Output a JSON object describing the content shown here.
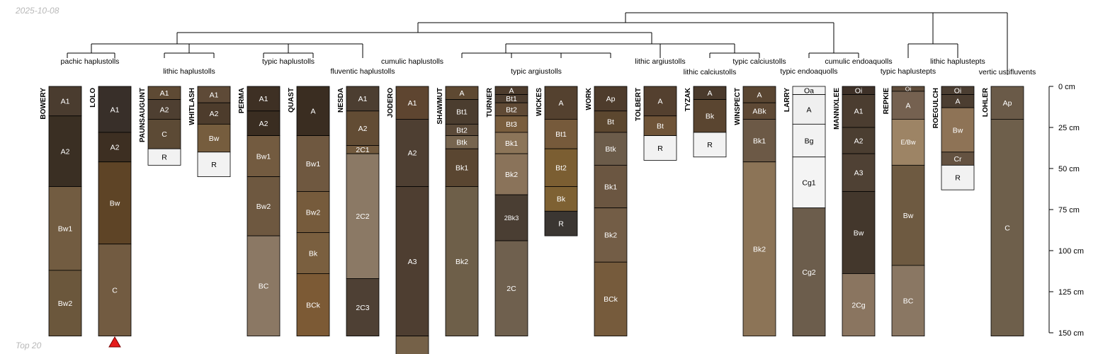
{
  "date_label": "2025-10-08",
  "footer_label": "Top 20",
  "depth_axis": {
    "max_cm": 150,
    "ticks": [
      0,
      25,
      50,
      75,
      100,
      125,
      150
    ],
    "tick_labels": [
      "0 cm",
      "25 cm",
      "50 cm",
      "75 cm",
      "100 cm",
      "125 cm",
      "150 cm"
    ]
  },
  "taxa_labels": [
    "pachic haplustolls",
    "lithic haplustolls",
    "typic haplustolls",
    "fluventic haplustolls",
    "cumulic haplustolls",
    "typic argiustolls",
    "lithic argiustolls",
    "lithic calciustolls",
    "typic calciustolls",
    "typic endoaquolls",
    "cumulic endoaquolls",
    "typic haplustepts",
    "lithic haplustepts",
    "vertic ustifluvents"
  ],
  "profiles": [
    {
      "name": "BOWERY",
      "horizons": [
        {
          "name": "A1",
          "top": 0,
          "bottom": 18,
          "color": "#4a3c2f"
        },
        {
          "name": "A2",
          "top": 18,
          "bottom": 61,
          "color": "#3a2f23"
        },
        {
          "name": "Bw1",
          "top": 61,
          "bottom": 112,
          "color": "#725c41"
        },
        {
          "name": "Bw2",
          "top": 112,
          "bottom": 152,
          "color": "#6b573c"
        }
      ]
    },
    {
      "name": "LOLO",
      "marker": "triangle",
      "horizons": [
        {
          "name": "A1",
          "top": 0,
          "bottom": 28,
          "color": "#382f29"
        },
        {
          "name": "A2",
          "top": 28,
          "bottom": 46,
          "color": "#3d2f22"
        },
        {
          "name": "Bw",
          "top": 46,
          "bottom": 96,
          "color": "#5e4426"
        },
        {
          "name": "C",
          "top": 96,
          "bottom": 152,
          "color": "#725b41"
        }
      ]
    },
    {
      "name": "PAUNSAUGUNT",
      "horizons": [
        {
          "name": "A1",
          "top": 0,
          "bottom": 8,
          "color": "#5e4a34"
        },
        {
          "name": "A2",
          "top": 8,
          "bottom": 20,
          "color": "#4e3f31"
        },
        {
          "name": "C",
          "top": 20,
          "bottom": 38,
          "color": "#5c4a35"
        },
        {
          "name": "R",
          "top": 38,
          "bottom": 48,
          "color": "#f2f2f2"
        }
      ]
    },
    {
      "name": "WHITLASH",
      "horizons": [
        {
          "name": "A1",
          "top": 0,
          "bottom": 10,
          "color": "#5e4a37"
        },
        {
          "name": "A2",
          "top": 10,
          "bottom": 23,
          "color": "#4d3c2c"
        },
        {
          "name": "Bw",
          "top": 23,
          "bottom": 40,
          "color": "#765d3e"
        },
        {
          "name": "R",
          "top": 40,
          "bottom": 55,
          "color": "#f2f2f2"
        }
      ]
    },
    {
      "name": "PERMA",
      "horizons": [
        {
          "name": "A1",
          "top": 0,
          "bottom": 15,
          "color": "#3e3024"
        },
        {
          "name": "A2",
          "top": 15,
          "bottom": 30,
          "color": "#3a2d21"
        },
        {
          "name": "Bw1",
          "top": 30,
          "bottom": 55,
          "color": "#735b40"
        },
        {
          "name": "Bw2",
          "top": 55,
          "bottom": 91,
          "color": "#6e5840"
        },
        {
          "name": "BC",
          "top": 91,
          "bottom": 152,
          "color": "#8b7864"
        }
      ]
    },
    {
      "name": "QUAST",
      "horizons": [
        {
          "name": "A",
          "top": 0,
          "bottom": 30,
          "color": "#3a2d21"
        },
        {
          "name": "Bw1",
          "top": 30,
          "bottom": 64,
          "color": "#6f5840"
        },
        {
          "name": "Bw2",
          "top": 64,
          "bottom": 89,
          "color": "#765b3c"
        },
        {
          "name": "Bk",
          "top": 89,
          "bottom": 114,
          "color": "#7a5f3f"
        },
        {
          "name": "BCk",
          "top": 114,
          "bottom": 152,
          "color": "#7c5a35"
        }
      ]
    },
    {
      "name": "NESDA",
      "horizons": [
        {
          "name": "A1",
          "top": 0,
          "bottom": 15,
          "color": "#4c3e31"
        },
        {
          "name": "A2",
          "top": 15,
          "bottom": 36,
          "color": "#624c34"
        },
        {
          "name": "2C1",
          "top": 36,
          "bottom": 41,
          "color": "#725a3e"
        },
        {
          "name": "2C2",
          "top": 41,
          "bottom": 117,
          "color": "#8b7965"
        },
        {
          "name": "2C3",
          "top": 117,
          "bottom": 152,
          "color": "#4e4034"
        }
      ]
    },
    {
      "name": "JODERO",
      "horizons": [
        {
          "name": "A1",
          "top": 0,
          "bottom": 20,
          "color": "#5e4530"
        },
        {
          "name": "A2",
          "top": 20,
          "bottom": 61,
          "color": "#4e3f32"
        },
        {
          "name": "A3",
          "top": 61,
          "bottom": 152,
          "color": "#4e3e31"
        },
        {
          "name": "",
          "top": 152,
          "bottom": 165,
          "color": "#756148"
        }
      ]
    },
    {
      "name": "SHAWMUT",
      "horizons": [
        {
          "name": "A",
          "top": 0,
          "bottom": 8,
          "color": "#5e4932"
        },
        {
          "name": "Bt1",
          "top": 8,
          "bottom": 23,
          "color": "#4b3d2f"
        },
        {
          "name": "Bt2",
          "top": 23,
          "bottom": 30,
          "color": "#5b4a39"
        },
        {
          "name": "Btk",
          "top": 30,
          "bottom": 38,
          "color": "#77654f"
        },
        {
          "name": "Bk1",
          "top": 38,
          "bottom": 61,
          "color": "#5a4631"
        },
        {
          "name": "Bk2",
          "top": 61,
          "bottom": 152,
          "color": "#6e5f49"
        }
      ]
    },
    {
      "name": "TURNER",
      "horizons": [
        {
          "name": "A",
          "top": 0,
          "bottom": 5,
          "color": "#4d3c2d"
        },
        {
          "name": "Bt1",
          "top": 5,
          "bottom": 10,
          "color": "#4e3e30"
        },
        {
          "name": "Bt2",
          "top": 10,
          "bottom": 18,
          "color": "#604a35"
        },
        {
          "name": "Bt3",
          "top": 18,
          "bottom": 28,
          "color": "#7a5e3e"
        },
        {
          "name": "Bk1",
          "top": 28,
          "bottom": 41,
          "color": "#8c7559"
        },
        {
          "name": "Bk2",
          "top": 41,
          "bottom": 66,
          "color": "#8a735a"
        },
        {
          "name": "2Bk3",
          "top": 66,
          "bottom": 94,
          "color": "#4a3e33"
        },
        {
          "name": "2C",
          "top": 94,
          "bottom": 152,
          "color": "#6f604e"
        }
      ]
    },
    {
      "name": "WICKES",
      "horizons": [
        {
          "name": "A",
          "top": 0,
          "bottom": 20,
          "color": "#54412f"
        },
        {
          "name": "Bt1",
          "top": 20,
          "bottom": 38,
          "color": "#765a3b"
        },
        {
          "name": "Bt2",
          "top": 38,
          "bottom": 61,
          "color": "#7b5e32"
        },
        {
          "name": "Bk",
          "top": 61,
          "bottom": 76,
          "color": "#7e6133"
        },
        {
          "name": "R",
          "top": 76,
          "bottom": 91,
          "color": "#3b3632"
        }
      ]
    },
    {
      "name": "WORK",
      "horizons": [
        {
          "name": "Ap",
          "top": 0,
          "bottom": 15,
          "color": "#4e3c2c"
        },
        {
          "name": "Bt",
          "top": 15,
          "bottom": 28,
          "color": "#5c472f"
        },
        {
          "name": "Btk",
          "top": 28,
          "bottom": 48,
          "color": "#6c5c4a"
        },
        {
          "name": "Bk1",
          "top": 48,
          "bottom": 74,
          "color": "#6b5641"
        },
        {
          "name": "Bk2",
          "top": 74,
          "bottom": 107,
          "color": "#735d46"
        },
        {
          "name": "BCk",
          "top": 107,
          "bottom": 152,
          "color": "#765b3c"
        }
      ]
    },
    {
      "name": "TOLBERT",
      "horizons": [
        {
          "name": "A",
          "top": 0,
          "bottom": 18,
          "color": "#54402f"
        },
        {
          "name": "Bt",
          "top": 18,
          "bottom": 30,
          "color": "#6f5438"
        },
        {
          "name": "R",
          "top": 30,
          "bottom": 45,
          "color": "#f2f2f2"
        }
      ]
    },
    {
      "name": "TYZAK",
      "horizons": [
        {
          "name": "A",
          "top": 0,
          "bottom": 8,
          "color": "#4a3a2c"
        },
        {
          "name": "Bk",
          "top": 8,
          "bottom": 28,
          "color": "#5a4530"
        },
        {
          "name": "R",
          "top": 28,
          "bottom": 43,
          "color": "#f2f2f2"
        }
      ]
    },
    {
      "name": "WINSPECT",
      "horizons": [
        {
          "name": "A",
          "top": 0,
          "bottom": 10,
          "color": "#5a4632"
        },
        {
          "name": "ABk",
          "top": 10,
          "bottom": 20,
          "color": "#5e4935"
        },
        {
          "name": "Bk1",
          "top": 20,
          "bottom": 46,
          "color": "#6c5946"
        },
        {
          "name": "Bk2",
          "top": 46,
          "bottom": 152,
          "color": "#8c7457"
        }
      ]
    },
    {
      "name": "LARRY",
      "horizons": [
        {
          "name": "Oa",
          "top": 0,
          "bottom": 5,
          "color": "#f2f2f2"
        },
        {
          "name": "A",
          "top": 5,
          "bottom": 23,
          "color": "#efefef"
        },
        {
          "name": "Bg",
          "top": 23,
          "bottom": 43,
          "color": "#f2f2f2"
        },
        {
          "name": "Cg1",
          "top": 43,
          "bottom": 74,
          "color": "#f4f4f4"
        },
        {
          "name": "Cg2",
          "top": 74,
          "bottom": 152,
          "color": "#6c5d4c"
        }
      ]
    },
    {
      "name": "MANNIXLEE",
      "horizons": [
        {
          "name": "Oi",
          "top": 0,
          "bottom": 5,
          "color": "#3e3128"
        },
        {
          "name": "A1",
          "top": 5,
          "bottom": 25,
          "color": "#4b3d30"
        },
        {
          "name": "A2",
          "top": 25,
          "bottom": 41,
          "color": "#4b3e31"
        },
        {
          "name": "A3",
          "top": 41,
          "bottom": 64,
          "color": "#4f4134"
        },
        {
          "name": "Bw",
          "top": 64,
          "bottom": 114,
          "color": "#43372c"
        },
        {
          "name": "2Cg",
          "top": 114,
          "bottom": 152,
          "color": "#8a7560"
        }
      ]
    },
    {
      "name": "REPKIE",
      "horizons": [
        {
          "name": "Oi",
          "top": 0,
          "bottom": 3,
          "color": "#5e4b3a"
        },
        {
          "name": "A",
          "top": 3,
          "bottom": 20,
          "color": "#756150"
        },
        {
          "name": "E/Bw",
          "top": 20,
          "bottom": 48,
          "color": "#9d8465"
        },
        {
          "name": "Bw",
          "top": 48,
          "bottom": 109,
          "color": "#6e5a41"
        },
        {
          "name": "BC",
          "top": 109,
          "bottom": 152,
          "color": "#8a7763"
        }
      ]
    },
    {
      "name": "ROEGULCH",
      "horizons": [
        {
          "name": "Oi",
          "top": 0,
          "bottom": 5,
          "color": "#4b3e32"
        },
        {
          "name": "A",
          "top": 5,
          "bottom": 13,
          "color": "#4c3e31"
        },
        {
          "name": "Bw",
          "top": 13,
          "bottom": 40,
          "color": "#8e7356"
        },
        {
          "name": "Cr",
          "top": 40,
          "bottom": 48,
          "color": "#645241"
        },
        {
          "name": "R",
          "top": 48,
          "bottom": 63,
          "color": "#f2f2f2"
        }
      ]
    },
    {
      "name": "LOHLER",
      "horizons": [
        {
          "name": "Ap",
          "top": 0,
          "bottom": 20,
          "color": "#6a5a48"
        },
        {
          "name": "C",
          "top": 20,
          "bottom": 152,
          "color": "#6e5f4b"
        }
      ]
    }
  ]
}
